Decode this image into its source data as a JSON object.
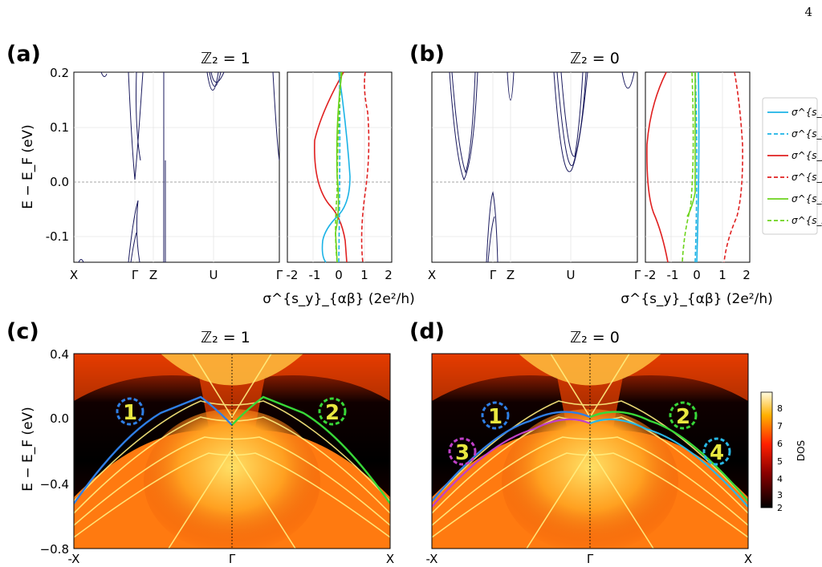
{
  "page_number": "4",
  "panels": {
    "a": {
      "label": "(a)",
      "title": "ℤ₂ = 1"
    },
    "b": {
      "label": "(b)",
      "title": "ℤ₂ = 0"
    },
    "c": {
      "label": "(c)",
      "title": "ℤ₂ = 1"
    },
    "d": {
      "label": "(d)",
      "title": "ℤ₂ = 0"
    }
  },
  "axes": {
    "band_ylabel": "E − E_F (eV)",
    "band_yticks": [
      "0.2",
      "0.1",
      "0.0",
      "-0.1"
    ],
    "band_xticks": [
      "X",
      "Γ",
      "Z",
      "U",
      "Γ"
    ],
    "shc_xlabel": "σ^{s_y}_{αβ} (2e²/h)",
    "shc_xticks": [
      "-2",
      "-1",
      "0",
      "1",
      "2"
    ],
    "dos_ylabel": "E − E_F (eV)",
    "dos_yticks": [
      "0.4",
      "0.0",
      "−0.4",
      "−0.8"
    ],
    "dos_xticks": [
      "-X",
      "Γ",
      "X"
    ]
  },
  "legend": {
    "entries": [
      {
        "label": "σ^{s_x}_{yz}",
        "color": "#1bb3e6",
        "style": "solid"
      },
      {
        "label": "σ^{s_x}_{zy}",
        "color": "#1bb3e6",
        "style": "dashed"
      },
      {
        "label": "σ^{s_y}_{xz}",
        "color": "#e02020",
        "style": "solid"
      },
      {
        "label": "σ^{s_y}_{zx}",
        "color": "#e02020",
        "style": "dashed"
      },
      {
        "label": "σ^{s_z}_{xy}",
        "color": "#6cd31b",
        "style": "solid"
      },
      {
        "label": "σ^{s_z}_{yx}",
        "color": "#6cd31b",
        "style": "dashed"
      }
    ]
  },
  "colorbar": {
    "label": "DOS",
    "ticks": [
      "8",
      "7",
      "6",
      "5",
      "4",
      "3",
      "2"
    ]
  },
  "regions": {
    "c": [
      {
        "num": "1",
        "color": "#2f7fe6"
      },
      {
        "num": "2",
        "color": "#38d838"
      }
    ],
    "d": [
      {
        "num": "1",
        "color": "#2f7fe6"
      },
      {
        "num": "2",
        "color": "#38d838"
      },
      {
        "num": "3",
        "color": "#c040c8"
      },
      {
        "num": "4",
        "color": "#28b8e6"
      }
    ]
  },
  "chart_data": [
    {
      "type": "line",
      "panel": "a",
      "ylim": [
        -0.15,
        0.2
      ],
      "xticks": [
        "X",
        "Γ",
        "Z",
        "U",
        "Γ"
      ]
    },
    {
      "type": "line",
      "panel": "a-shc",
      "xlim": [
        -2,
        2
      ],
      "ylim": [
        -0.15,
        0.2
      ]
    },
    {
      "type": "line",
      "panel": "b",
      "ylim": [
        -0.15,
        0.2
      ],
      "xticks": [
        "X",
        "Γ",
        "Z",
        "U",
        "Γ"
      ]
    },
    {
      "type": "line",
      "panel": "b-shc",
      "xlim": [
        -2,
        2
      ],
      "ylim": [
        -0.15,
        0.2
      ]
    },
    {
      "type": "heatmap",
      "panel": "c",
      "ylim": [
        -0.8,
        0.4
      ],
      "xticks": [
        "-X",
        "Γ",
        "X"
      ],
      "colorbar_range": [
        2,
        8.8
      ]
    },
    {
      "type": "heatmap",
      "panel": "d",
      "ylim": [
        -0.8,
        0.4
      ],
      "xticks": [
        "-X",
        "Γ",
        "X"
      ],
      "colorbar_range": [
        2,
        8.8
      ]
    }
  ]
}
